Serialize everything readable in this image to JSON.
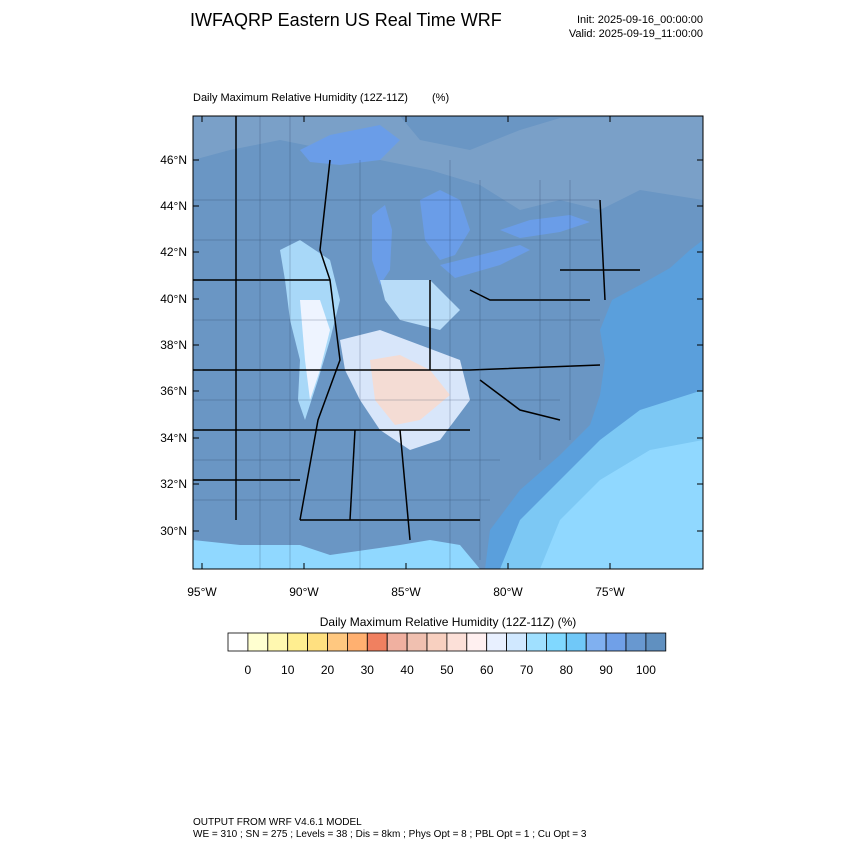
{
  "header": {
    "title": "IWFAQRP Eastern US Real Time WRF",
    "init": "Init: 2025-09-16_00:00:00",
    "valid": "Valid: 2025-09-19_11:00:00"
  },
  "map": {
    "title": "Daily Maximum Relative Humidity (12Z-11Z)",
    "units": "(%)",
    "lat_labels": [
      "46°N",
      "44°N",
      "42°N",
      "40°N",
      "38°N",
      "36°N",
      "34°N",
      "32°N",
      "30°N"
    ],
    "lon_labels": [
      "95°W",
      "90°W",
      "85°W",
      "80°W",
      "75°W"
    ]
  },
  "colorbar": {
    "title": "Daily Maximum Relative Humidity (12Z-11Z)  (%)",
    "colors": [
      "#ffffff",
      "#ffffd0",
      "#fff8b0",
      "#ffee90",
      "#ffe080",
      "#ffc880",
      "#ffb070",
      "#f08060",
      "#f0b0a0",
      "#f0c0b0",
      "#f8d0c0",
      "#fce0d8",
      "#fff0f0",
      "#e8f0ff",
      "#d0e8ff",
      "#a0e0ff",
      "#80d8ff",
      "#70c8f8",
      "#80b0f0",
      "#70a0e8",
      "#6898d0",
      "#6090c0"
    ],
    "labels": [
      "0",
      "10",
      "20",
      "30",
      "40",
      "50",
      "60",
      "70",
      "80",
      "90",
      "100"
    ]
  },
  "footer": {
    "line1": "OUTPUT FROM WRF V4.6.1 MODEL",
    "line2": "WE = 310 ; SN = 275 ; Levels = 38 ; Dis = 8km ; Phys Opt = 8 ; PBL Opt = 1 ; Cu Opt = 3"
  }
}
